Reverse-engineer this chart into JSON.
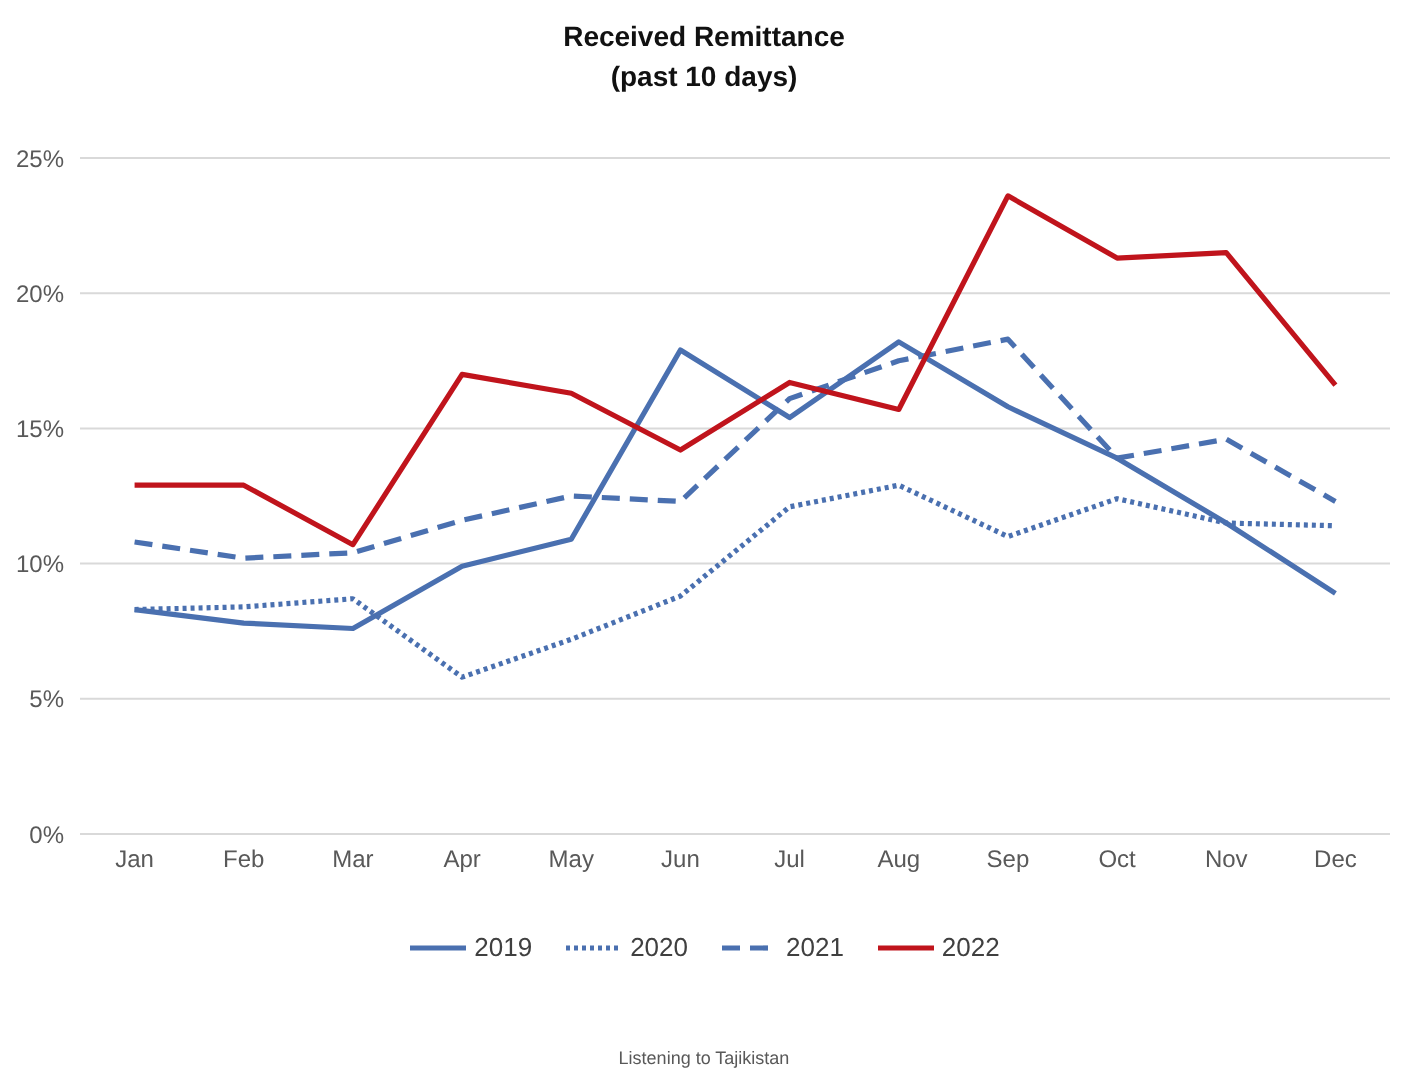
{
  "chart_data": {
    "type": "line",
    "title": "Received Remittance",
    "subtitle": "(past 10 days)",
    "categories": [
      "Jan",
      "Feb",
      "Mar",
      "Apr",
      "May",
      "Jun",
      "Jul",
      "Aug",
      "Sep",
      "Oct",
      "Nov",
      "Dec"
    ],
    "series": [
      {
        "name": "2019",
        "color": "#4a70b0",
        "line_style": "solid",
        "values": [
          8.3,
          7.8,
          7.6,
          9.9,
          10.9,
          17.9,
          15.4,
          18.2,
          15.8,
          13.9,
          11.5,
          8.9
        ]
      },
      {
        "name": "2020",
        "color": "#4a70b0",
        "line_style": "dotted",
        "values": [
          8.3,
          8.4,
          8.7,
          5.8,
          7.2,
          8.8,
          12.1,
          12.9,
          11.0,
          12.4,
          11.5,
          11.4
        ]
      },
      {
        "name": "2021",
        "color": "#4a70b0",
        "line_style": "dashed",
        "values": [
          10.8,
          10.2,
          10.4,
          11.6,
          12.5,
          12.3,
          16.1,
          17.5,
          18.3,
          13.9,
          14.6,
          12.3
        ]
      },
      {
        "name": "2022",
        "color": "#c0141c",
        "line_style": "solid",
        "values": [
          12.9,
          12.9,
          10.7,
          17.0,
          16.3,
          14.2,
          16.7,
          15.7,
          23.6,
          21.3,
          21.5,
          16.6
        ]
      }
    ],
    "ylim": [
      0,
      25
    ],
    "yticks": [
      {
        "value": 0,
        "label": "0%"
      },
      {
        "value": 5,
        "label": "5%"
      },
      {
        "value": 10,
        "label": "10%"
      },
      {
        "value": 15,
        "label": "15%"
      },
      {
        "value": 20,
        "label": "20%"
      },
      {
        "value": 25,
        "label": "25%"
      }
    ],
    "grid": "y",
    "legend": "bottom",
    "marker": "none",
    "annotations": [
      "Listening to Tajikistan"
    ]
  }
}
